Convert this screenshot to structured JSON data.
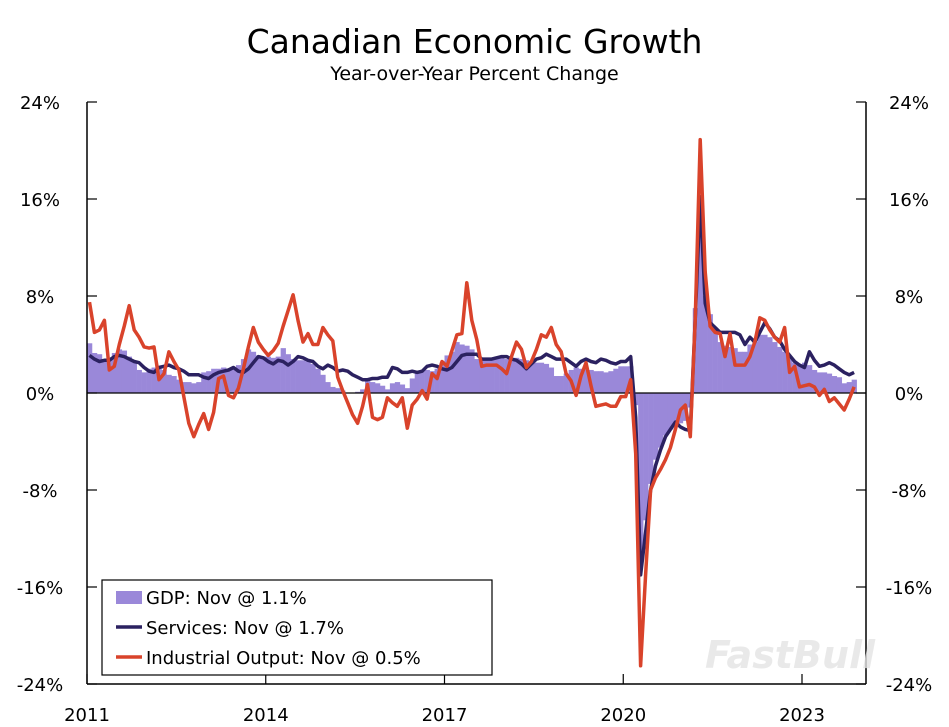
{
  "chart_data": {
    "type": "bar+line",
    "title": "Canadian Economic Growth",
    "subtitle": "Year-over-Year Percent Change",
    "x_start": "2011-01",
    "x_end": "2023-11",
    "frequency": "monthly",
    "x_tick_labels": [
      "2011",
      "2014",
      "2017",
      "2020",
      "2023"
    ],
    "y_tick_labels": [
      "24%",
      "16%",
      "8%",
      "0%",
      "-8%",
      "-16%",
      "-24%"
    ],
    "ylim": [
      -24,
      24
    ],
    "y_ticks": [
      24,
      16,
      8,
      0,
      -8,
      -16,
      -24
    ],
    "grid": false,
    "legend_position": "bottom-left",
    "series": [
      {
        "name": "GDP: Nov @ 1.1%",
        "type": "bar",
        "color": "#9a88d9",
        "values": [
          4.1,
          3.3,
          3.2,
          2.8,
          2.9,
          3.3,
          3.6,
          3.5,
          3.0,
          2.6,
          1.9,
          1.7,
          2.0,
          2.1,
          2.0,
          1.9,
          1.5,
          1.4,
          1.1,
          0.9,
          0.9,
          0.8,
          0.9,
          1.7,
          1.8,
          2.0,
          2.0,
          2.1,
          1.9,
          2.0,
          2.3,
          2.8,
          3.6,
          3.4,
          3.1,
          3.0,
          3.0,
          2.9,
          3.0,
          3.7,
          3.2,
          2.8,
          2.7,
          2.7,
          2.6,
          2.4,
          2.0,
          1.5,
          0.9,
          0.5,
          0.4,
          0.2,
          0.0,
          0.0,
          0.1,
          0.3,
          1.1,
          0.9,
          0.8,
          0.6,
          0.3,
          0.8,
          0.9,
          0.7,
          0.4,
          1.2,
          1.7,
          1.8,
          1.9,
          1.8,
          2.0,
          2.5,
          3.1,
          3.4,
          4.2,
          4.0,
          3.9,
          3.6,
          2.8,
          2.9,
          2.8,
          2.9,
          2.9,
          3.0,
          2.8,
          2.9,
          2.9,
          2.8,
          2.7,
          2.6,
          2.5,
          2.5,
          2.4,
          2.1,
          1.4,
          1.4,
          1.6,
          1.9,
          2.1,
          2.0,
          2.0,
          1.9,
          1.8,
          1.8,
          1.7,
          1.8,
          2.0,
          2.2,
          2.2,
          2.2,
          -1.0,
          -14.0,
          -10.5,
          -7.5,
          -5.5,
          -4.5,
          -3.5,
          -3.0,
          -2.6,
          -2.5,
          -2.3,
          -1.2,
          7.0,
          15.5,
          8.0,
          6.5,
          5.0,
          4.2,
          3.9,
          3.8,
          3.7,
          3.4,
          3.4,
          4.0,
          4.2,
          4.8,
          4.8,
          4.6,
          4.2,
          3.8,
          3.4,
          2.9,
          2.5,
          2.3,
          2.5,
          2.3,
          1.9,
          1.7,
          1.7,
          1.6,
          1.4,
          1.3,
          0.8,
          0.9,
          1.1
        ]
      },
      {
        "name": "Services: Nov @ 1.7%",
        "type": "line",
        "color": "#2b2160",
        "values": [
          3.1,
          2.8,
          2.6,
          2.7,
          2.7,
          3.0,
          3.1,
          3.0,
          2.8,
          2.6,
          2.5,
          2.1,
          1.8,
          1.7,
          2.1,
          2.2,
          2.3,
          2.1,
          2.0,
          1.8,
          1.5,
          1.5,
          1.5,
          1.3,
          1.2,
          1.5,
          1.7,
          1.8,
          1.9,
          2.1,
          1.8,
          1.7,
          2.0,
          2.5,
          3.0,
          2.9,
          2.6,
          2.4,
          2.7,
          2.6,
          2.3,
          2.6,
          3.0,
          2.9,
          2.7,
          2.6,
          2.2,
          2.0,
          2.3,
          2.1,
          1.8,
          1.9,
          1.8,
          1.5,
          1.3,
          1.1,
          1.1,
          1.2,
          1.2,
          1.3,
          1.3,
          2.1,
          2.0,
          1.7,
          1.7,
          1.8,
          1.7,
          1.8,
          2.2,
          2.3,
          2.2,
          2.0,
          1.9,
          2.1,
          2.6,
          3.1,
          3.2,
          3.2,
          3.2,
          2.8,
          2.8,
          2.8,
          2.9,
          3.0,
          3.0,
          2.8,
          2.7,
          2.4,
          2.0,
          2.4,
          2.8,
          2.9,
          3.2,
          3.0,
          2.8,
          2.8,
          2.8,
          2.5,
          2.2,
          2.6,
          2.8,
          2.6,
          2.5,
          2.8,
          2.7,
          2.5,
          2.4,
          2.6,
          2.6,
          3.0,
          -2.0,
          -15.0,
          -11.5,
          -8.0,
          -6.0,
          -4.7,
          -3.6,
          -3.0,
          -2.4,
          -2.8,
          -3.0,
          -3.1,
          6.0,
          16.2,
          7.4,
          5.8,
          5.4,
          5.0,
          5.0,
          5.0,
          5.0,
          4.8,
          4.0,
          4.6,
          4.2,
          5.0,
          5.8,
          5.3,
          4.6,
          4.3,
          3.6,
          3.1,
          2.6,
          2.3,
          2.1,
          3.4,
          2.7,
          2.2,
          2.3,
          2.5,
          2.3,
          2.0,
          1.7,
          1.5,
          1.7
        ]
      },
      {
        "name": "Industrial Output: Nov @ 0.5%",
        "type": "line",
        "color": "#d9432b",
        "values": [
          7.5,
          5.0,
          5.2,
          6.0,
          1.9,
          2.2,
          4.0,
          5.5,
          7.2,
          5.2,
          4.6,
          3.8,
          3.7,
          3.8,
          1.1,
          1.6,
          3.4,
          2.6,
          1.9,
          -0.3,
          -2.5,
          -3.6,
          -2.6,
          -1.7,
          -3.0,
          -1.6,
          1.2,
          1.4,
          -0.2,
          -0.4,
          0.4,
          2.0,
          3.8,
          5.4,
          4.2,
          3.6,
          3.1,
          3.5,
          4.1,
          5.5,
          6.8,
          8.1,
          6.0,
          4.2,
          4.9,
          4.0,
          4.0,
          5.4,
          4.8,
          4.3,
          1.3,
          0.2,
          -0.8,
          -1.8,
          -2.5,
          -1.1,
          0.7,
          -2.0,
          -2.2,
          -2.0,
          -0.4,
          -0.8,
          -1.1,
          -0.4,
          -2.9,
          -1.0,
          -0.5,
          0.2,
          -0.5,
          1.6,
          1.2,
          2.6,
          2.2,
          3.5,
          4.8,
          4.9,
          9.1,
          6.0,
          4.4,
          2.2,
          2.3,
          2.3,
          2.3,
          2.0,
          1.6,
          3.0,
          4.2,
          3.6,
          2.1,
          2.6,
          3.6,
          4.8,
          4.6,
          5.4,
          4.0,
          3.4,
          1.6,
          1.0,
          -0.2,
          1.4,
          2.5,
          0.6,
          -1.1,
          -1.0,
          -0.9,
          -1.1,
          -1.1,
          -0.3,
          -0.3,
          1.1,
          -5.0,
          -22.5,
          -15.0,
          -8.0,
          -7.0,
          -6.3,
          -5.5,
          -4.5,
          -3.0,
          -1.4,
          -1.0,
          -3.6,
          6.0,
          20.9,
          10.0,
          5.5,
          5.0,
          4.9,
          3.0,
          4.9,
          2.3,
          2.3,
          2.3,
          3.0,
          4.2,
          6.2,
          6.0,
          5.2,
          4.6,
          4.2,
          5.4,
          1.7,
          2.2,
          0.5,
          0.6,
          0.7,
          0.5,
          -0.2,
          0.3,
          -0.7,
          -0.4,
          -0.9,
          -1.4,
          -0.5,
          0.5
        ]
      }
    ]
  },
  "watermark": "FastBull"
}
